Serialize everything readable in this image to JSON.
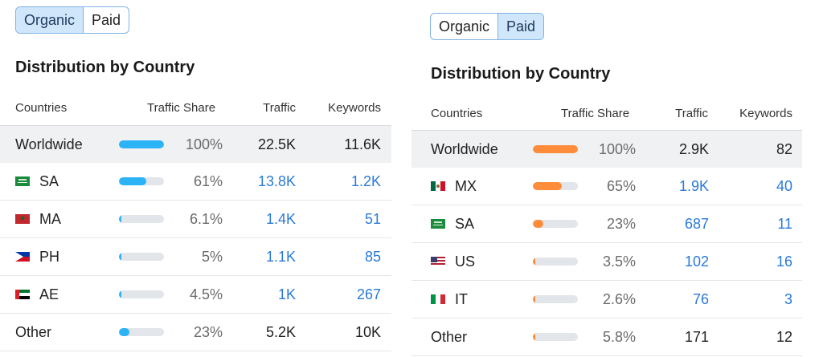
{
  "left": {
    "toggle": {
      "organic_label": "Organic",
      "paid_label": "Paid",
      "active": "organic"
    },
    "title": "Distribution by Country",
    "headers": {
      "countries": "Countries",
      "traffic_share": "Traffic Share",
      "traffic": "Traffic",
      "keywords": "Keywords"
    },
    "bar_color": "#2bb3f6",
    "rows": [
      {
        "flag": "none",
        "country": "Worldwide",
        "share": 1.0,
        "share_label": "100%",
        "traffic": "22.5K",
        "keywords": "11.6K",
        "link": false
      },
      {
        "flag": "sa",
        "country": "SA",
        "share": 0.61,
        "share_label": "61%",
        "traffic": "13.8K",
        "keywords": "1.2K",
        "link": true
      },
      {
        "flag": "ma",
        "country": "MA",
        "share": 0.061,
        "share_label": "6.1%",
        "traffic": "1.4K",
        "keywords": "51",
        "link": true
      },
      {
        "flag": "ph",
        "country": "PH",
        "share": 0.05,
        "share_label": "5%",
        "traffic": "1.1K",
        "keywords": "85",
        "link": true
      },
      {
        "flag": "ae",
        "country": "AE",
        "share": 0.045,
        "share_label": "4.5%",
        "traffic": "1K",
        "keywords": "267",
        "link": true
      },
      {
        "flag": "none",
        "country": "Other",
        "share": 0.23,
        "share_label": "23%",
        "traffic": "5.2K",
        "keywords": "10K",
        "link": false
      }
    ]
  },
  "right": {
    "toggle": {
      "organic_label": "Organic",
      "paid_label": "Paid",
      "active": "paid"
    },
    "title": "Distribution by Country",
    "headers": {
      "countries": "Countries",
      "traffic_share": "Traffic Share",
      "traffic": "Traffic",
      "keywords": "Keywords"
    },
    "bar_color": "#ff8c3a",
    "rows": [
      {
        "flag": "none",
        "country": "Worldwide",
        "share": 1.0,
        "share_label": "100%",
        "traffic": "2.9K",
        "keywords": "82",
        "link": false
      },
      {
        "flag": "mx",
        "country": "MX",
        "share": 0.65,
        "share_label": "65%",
        "traffic": "1.9K",
        "keywords": "40",
        "link": true
      },
      {
        "flag": "sa",
        "country": "SA",
        "share": 0.23,
        "share_label": "23%",
        "traffic": "687",
        "keywords": "11",
        "link": true
      },
      {
        "flag": "us",
        "country": "US",
        "share": 0.035,
        "share_label": "3.5%",
        "traffic": "102",
        "keywords": "16",
        "link": true
      },
      {
        "flag": "it",
        "country": "IT",
        "share": 0.026,
        "share_label": "2.6%",
        "traffic": "76",
        "keywords": "3",
        "link": true
      },
      {
        "flag": "none",
        "country": "Other",
        "share": 0.058,
        "share_label": "5.8%",
        "traffic": "171",
        "keywords": "12",
        "link": false
      }
    ]
  }
}
